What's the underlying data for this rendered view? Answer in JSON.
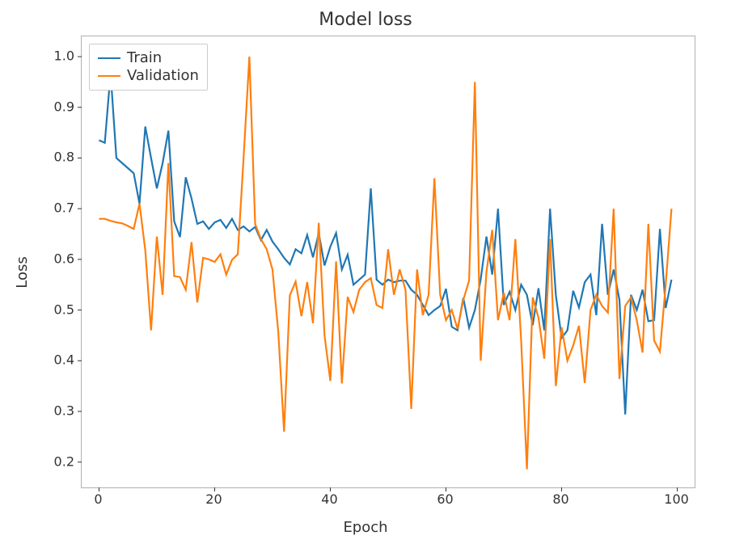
{
  "chart": {
    "type": "line",
    "title": "Model loss",
    "title_fontsize": 22,
    "xlabel": "Epoch",
    "ylabel": "Loss",
    "label_fontsize": 18,
    "background_color": "#ffffff",
    "axis_color": "#b0b0b0",
    "tick_color": "#333333",
    "text_color": "#333333",
    "line_width": 2.2,
    "xlim": [
      -3,
      103
    ],
    "ylim": [
      0.15,
      1.04
    ],
    "xticks": [
      0,
      20,
      40,
      60,
      80,
      100
    ],
    "yticks": [
      0.2,
      0.3,
      0.4,
      0.5,
      0.6,
      0.7,
      0.8,
      0.9,
      1.0
    ],
    "legend": {
      "position": "upper-left",
      "border_color": "#cccccc",
      "background": "#ffffff",
      "fontsize": 18,
      "items": [
        {
          "label": "Train",
          "color": "#1f77b4"
        },
        {
          "label": "Validation",
          "color": "#ff7f0e"
        }
      ]
    },
    "series": [
      {
        "name": "Train",
        "color": "#1f77b4",
        "x": [
          0,
          1,
          2,
          3,
          4,
          5,
          6,
          7,
          8,
          9,
          10,
          11,
          12,
          13,
          14,
          15,
          16,
          17,
          18,
          19,
          20,
          21,
          22,
          23,
          24,
          25,
          26,
          27,
          28,
          29,
          30,
          31,
          32,
          33,
          34,
          35,
          36,
          37,
          38,
          39,
          40,
          41,
          42,
          43,
          44,
          45,
          46,
          47,
          48,
          49,
          50,
          51,
          52,
          53,
          54,
          55,
          56,
          57,
          58,
          59,
          60,
          61,
          62,
          63,
          64,
          65,
          66,
          67,
          68,
          69,
          70,
          71,
          72,
          73,
          74,
          75,
          76,
          77,
          78,
          79,
          80,
          81,
          82,
          83,
          84,
          85,
          86,
          87,
          88,
          89,
          90,
          91,
          92,
          93,
          94,
          95,
          96,
          97,
          98,
          99
        ],
        "y": [
          0.835,
          0.83,
          0.968,
          0.8,
          0.79,
          0.78,
          0.77,
          0.71,
          0.862,
          0.8,
          0.74,
          0.79,
          0.854,
          0.675,
          0.644,
          0.762,
          0.72,
          0.67,
          0.675,
          0.66,
          0.673,
          0.678,
          0.662,
          0.68,
          0.658,
          0.665,
          0.655,
          0.664,
          0.638,
          0.658,
          0.635,
          0.62,
          0.603,
          0.59,
          0.62,
          0.612,
          0.648,
          0.604,
          0.652,
          0.588,
          0.625,
          0.652,
          0.58,
          0.609,
          0.55,
          0.56,
          0.57,
          0.74,
          0.56,
          0.55,
          0.56,
          0.555,
          0.558,
          0.558,
          0.54,
          0.53,
          0.51,
          0.49,
          0.5,
          0.508,
          0.542,
          0.467,
          0.46,
          0.524,
          0.465,
          0.5,
          0.56,
          0.645,
          0.57,
          0.7,
          0.51,
          0.536,
          0.5,
          0.55,
          0.53,
          0.47,
          0.543,
          0.46,
          0.7,
          0.53,
          0.445,
          0.46,
          0.538,
          0.505,
          0.555,
          0.57,
          0.49,
          0.67,
          0.53,
          0.58,
          0.52,
          0.294,
          0.53,
          0.5,
          0.54,
          0.478,
          0.48,
          0.66,
          0.504,
          0.56
        ]
      },
      {
        "name": "Validation",
        "color": "#ff7f0e",
        "x": [
          0,
          1,
          2,
          3,
          4,
          5,
          6,
          7,
          8,
          9,
          10,
          11,
          12,
          13,
          14,
          15,
          16,
          17,
          18,
          19,
          20,
          21,
          22,
          23,
          24,
          25,
          26,
          27,
          28,
          29,
          30,
          31,
          32,
          33,
          34,
          35,
          36,
          37,
          38,
          39,
          40,
          41,
          42,
          43,
          44,
          45,
          46,
          47,
          48,
          49,
          50,
          51,
          52,
          53,
          54,
          55,
          56,
          57,
          58,
          59,
          60,
          61,
          62,
          63,
          64,
          65,
          66,
          67,
          68,
          69,
          70,
          71,
          72,
          73,
          74,
          75,
          76,
          77,
          78,
          79,
          80,
          81,
          82,
          83,
          84,
          85,
          86,
          87,
          88,
          89,
          90,
          91,
          92,
          93,
          94,
          95,
          96,
          97,
          98,
          99
        ],
        "y": [
          0.68,
          0.68,
          0.676,
          0.673,
          0.671,
          0.666,
          0.66,
          0.71,
          0.618,
          0.46,
          0.645,
          0.53,
          0.79,
          0.567,
          0.565,
          0.54,
          0.634,
          0.515,
          0.603,
          0.6,
          0.595,
          0.61,
          0.57,
          0.599,
          0.61,
          0.8,
          1.0,
          0.67,
          0.64,
          0.62,
          0.58,
          0.457,
          0.26,
          0.529,
          0.556,
          0.488,
          0.555,
          0.474,
          0.672,
          0.45,
          0.36,
          0.596,
          0.355,
          0.526,
          0.496,
          0.54,
          0.555,
          0.563,
          0.51,
          0.504,
          0.62,
          0.53,
          0.58,
          0.54,
          0.305,
          0.58,
          0.49,
          0.53,
          0.76,
          0.53,
          0.48,
          0.5,
          0.463,
          0.52,
          0.558,
          0.95,
          0.4,
          0.575,
          0.658,
          0.48,
          0.534,
          0.48,
          0.64,
          0.44,
          0.186,
          0.525,
          0.485,
          0.404,
          0.64,
          0.35,
          0.466,
          0.4,
          0.43,
          0.469,
          0.356,
          0.5,
          0.53,
          0.508,
          0.495,
          0.7,
          0.364,
          0.508,
          0.525,
          0.48,
          0.416,
          0.67,
          0.44,
          0.418,
          0.55,
          0.7
        ]
      }
    ]
  }
}
